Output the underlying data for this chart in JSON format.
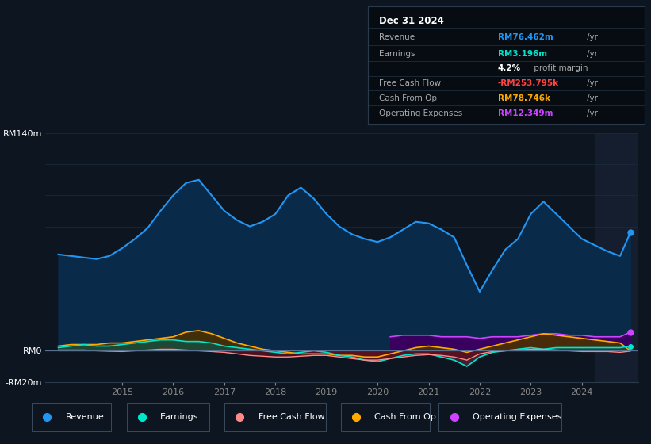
{
  "bg_color": "#0d1520",
  "plot_bg_color": "#0d1520",
  "title_box": {
    "date": "Dec 31 2024",
    "revenue_label": "Revenue",
    "revenue_value": "RM76.462m",
    "revenue_color": "#2196f3",
    "earnings_label": "Earnings",
    "earnings_value": "RM3.196m",
    "earnings_color": "#00e5cc",
    "margin_value": "4.2%",
    "margin_text": " profit margin",
    "fcf_label": "Free Cash Flow",
    "fcf_value": "-RM253.795k",
    "fcf_color": "#ff4444",
    "cashop_label": "Cash From Op",
    "cashop_value": "RM78.746k",
    "cashop_color": "#ffaa00",
    "opex_label": "Operating Expenses",
    "opex_value": "RM12.349m",
    "opex_color": "#cc44ff"
  },
  "ylim": [
    -20,
    140
  ],
  "xlim": [
    2013.5,
    2025.1
  ],
  "years": [
    2013.75,
    2014.0,
    2014.25,
    2014.5,
    2014.75,
    2015.0,
    2015.25,
    2015.5,
    2015.75,
    2016.0,
    2016.25,
    2016.5,
    2016.75,
    2017.0,
    2017.25,
    2017.5,
    2017.75,
    2018.0,
    2018.25,
    2018.5,
    2018.75,
    2019.0,
    2019.25,
    2019.5,
    2019.75,
    2020.0,
    2020.25,
    2020.5,
    2020.75,
    2021.0,
    2021.25,
    2021.5,
    2021.75,
    2022.0,
    2022.25,
    2022.5,
    2022.75,
    2023.0,
    2023.25,
    2023.5,
    2023.75,
    2024.0,
    2024.25,
    2024.5,
    2024.75,
    2024.95
  ],
  "revenue": [
    62,
    61,
    60,
    59,
    61,
    66,
    72,
    79,
    90,
    100,
    108,
    110,
    100,
    90,
    84,
    80,
    83,
    88,
    100,
    105,
    98,
    88,
    80,
    75,
    72,
    70,
    73,
    78,
    83,
    82,
    78,
    73,
    55,
    38,
    52,
    65,
    72,
    88,
    96,
    88,
    80,
    72,
    68,
    64,
    61,
    76
  ],
  "earnings": [
    2,
    3,
    4,
    3,
    3,
    4,
    5,
    6,
    7,
    7,
    6,
    6,
    5,
    3,
    2,
    1,
    0,
    -1,
    -2,
    -1,
    0,
    -1,
    -3,
    -4,
    -6,
    -7,
    -5,
    -3,
    -2,
    -2,
    -4,
    -6,
    -10,
    -4,
    -1,
    0,
    1,
    2,
    1,
    2,
    2,
    2,
    2,
    2,
    2,
    3
  ],
  "free_cash_flow": [
    0.5,
    0.5,
    0.5,
    0,
    -0.3,
    -0.5,
    0,
    0.5,
    1,
    1,
    0.5,
    0,
    -0.5,
    -1,
    -2,
    -3,
    -3.5,
    -4,
    -4,
    -3.5,
    -3,
    -3,
    -4,
    -5,
    -6,
    -6,
    -5,
    -4,
    -3,
    -2.5,
    -3,
    -4,
    -6,
    -2,
    -0.5,
    0,
    0.5,
    1,
    1,
    0.5,
    0,
    -0.5,
    -0.5,
    -0.5,
    -1,
    -0.25
  ],
  "cash_from_op": [
    3,
    4,
    4,
    4,
    5,
    5,
    6,
    7,
    8,
    9,
    12,
    13,
    11,
    8,
    5,
    3,
    1,
    0,
    -1,
    -2,
    -2,
    -2,
    -3,
    -3,
    -4,
    -4,
    -2,
    0,
    2,
    3,
    2,
    1,
    -1,
    1,
    3,
    5,
    7,
    9,
    11,
    10,
    9,
    8,
    7,
    6,
    5,
    0.08
  ],
  "operating_expenses": [
    0,
    0,
    0,
    0,
    0,
    0,
    0,
    0,
    0,
    0,
    0,
    0,
    0,
    0,
    0,
    0,
    0,
    0,
    0,
    0,
    0,
    0,
    0,
    0,
    0,
    0,
    9,
    10,
    10,
    10,
    9,
    9,
    9,
    8,
    9,
    9,
    9,
    10,
    11,
    11,
    10,
    10,
    9,
    9,
    9,
    12
  ],
  "revenue_line_color": "#2196f3",
  "revenue_fill_color": "#0a2a4a",
  "earnings_line_color": "#00e5cc",
  "earnings_pos_fill": "#1a4a3a",
  "earnings_neg_fill": "#4a2030",
  "fcf_line_color": "#ff8888",
  "fcf_pos_fill": "#3a1800",
  "fcf_neg_fill": "#5a1020",
  "cashop_line_color": "#ffaa00",
  "cashop_pos_fill": "#4a3000",
  "cashop_neg_fill": "#3a1000",
  "opex_line_color": "#cc44ff",
  "opex_fill_color": "#3a0060",
  "shade_right_start": 2024.25,
  "shade_right_color": "#151e2e",
  "legend_items": [
    {
      "label": "Revenue",
      "color": "#2196f3"
    },
    {
      "label": "Earnings",
      "color": "#00e5cc"
    },
    {
      "label": "Free Cash Flow",
      "color": "#ff8888"
    },
    {
      "label": "Cash From Op",
      "color": "#ffaa00"
    },
    {
      "label": "Operating Expenses",
      "color": "#cc44ff"
    }
  ]
}
